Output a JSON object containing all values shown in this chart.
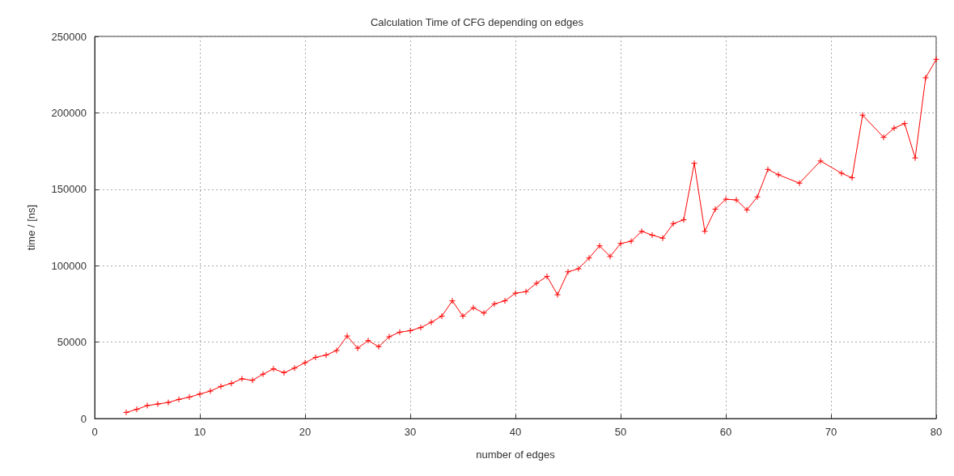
{
  "chart_data": {
    "type": "line",
    "title": "Calculation Time of CFG depending on edges",
    "xlabel": "number of edges",
    "ylabel": "time / [ns]",
    "x": [
      3,
      4,
      5,
      6,
      7,
      8,
      9,
      10,
      11,
      12,
      13,
      14,
      15,
      16,
      17,
      18,
      19,
      20,
      21,
      22,
      23,
      24,
      25,
      26,
      27,
      28,
      29,
      30,
      31,
      32,
      33,
      34,
      35,
      36,
      37,
      38,
      39,
      40,
      41,
      42,
      43,
      44,
      45,
      46,
      47,
      48,
      49,
      50,
      51,
      52,
      53,
      54,
      55,
      56,
      57,
      58,
      59,
      60,
      61,
      62,
      63,
      64,
      65,
      67,
      69,
      71,
      72,
      73,
      75,
      76,
      77,
      78,
      79,
      80
    ],
    "series": [
      {
        "color": "#ff0000",
        "values": [
          4000,
          6000,
          8500,
          9500,
          10500,
          12500,
          14000,
          16000,
          18000,
          21000,
          23000,
          26000,
          25000,
          29000,
          32500,
          30000,
          33000,
          36500,
          40000,
          41500,
          44500,
          54000,
          46000,
          51000,
          47000,
          53500,
          56500,
          57500,
          59500,
          63000,
          67000,
          77000,
          67000,
          72500,
          69000,
          75000,
          77000,
          82000,
          83000,
          88500,
          93000,
          81000,
          96000,
          98000,
          105000,
          113000,
          106000,
          114500,
          116000,
          122500,
          120000,
          118000,
          127500,
          130000,
          167000,
          122500,
          137000,
          143500,
          143000,
          136500,
          145000,
          163000,
          159500,
          154000,
          168500,
          160500,
          157500,
          198500,
          184000,
          190000,
          193000,
          170500,
          223000,
          235000
        ]
      }
    ],
    "xlim": [
      0,
      80
    ],
    "xticks": [
      0,
      10,
      20,
      30,
      40,
      50,
      60,
      70,
      80
    ],
    "ylim": [
      0,
      250000
    ],
    "yticks": [
      0,
      50000,
      100000,
      150000,
      200000,
      250000
    ],
    "grid": true,
    "marker": "cross",
    "line_style": "solid"
  }
}
